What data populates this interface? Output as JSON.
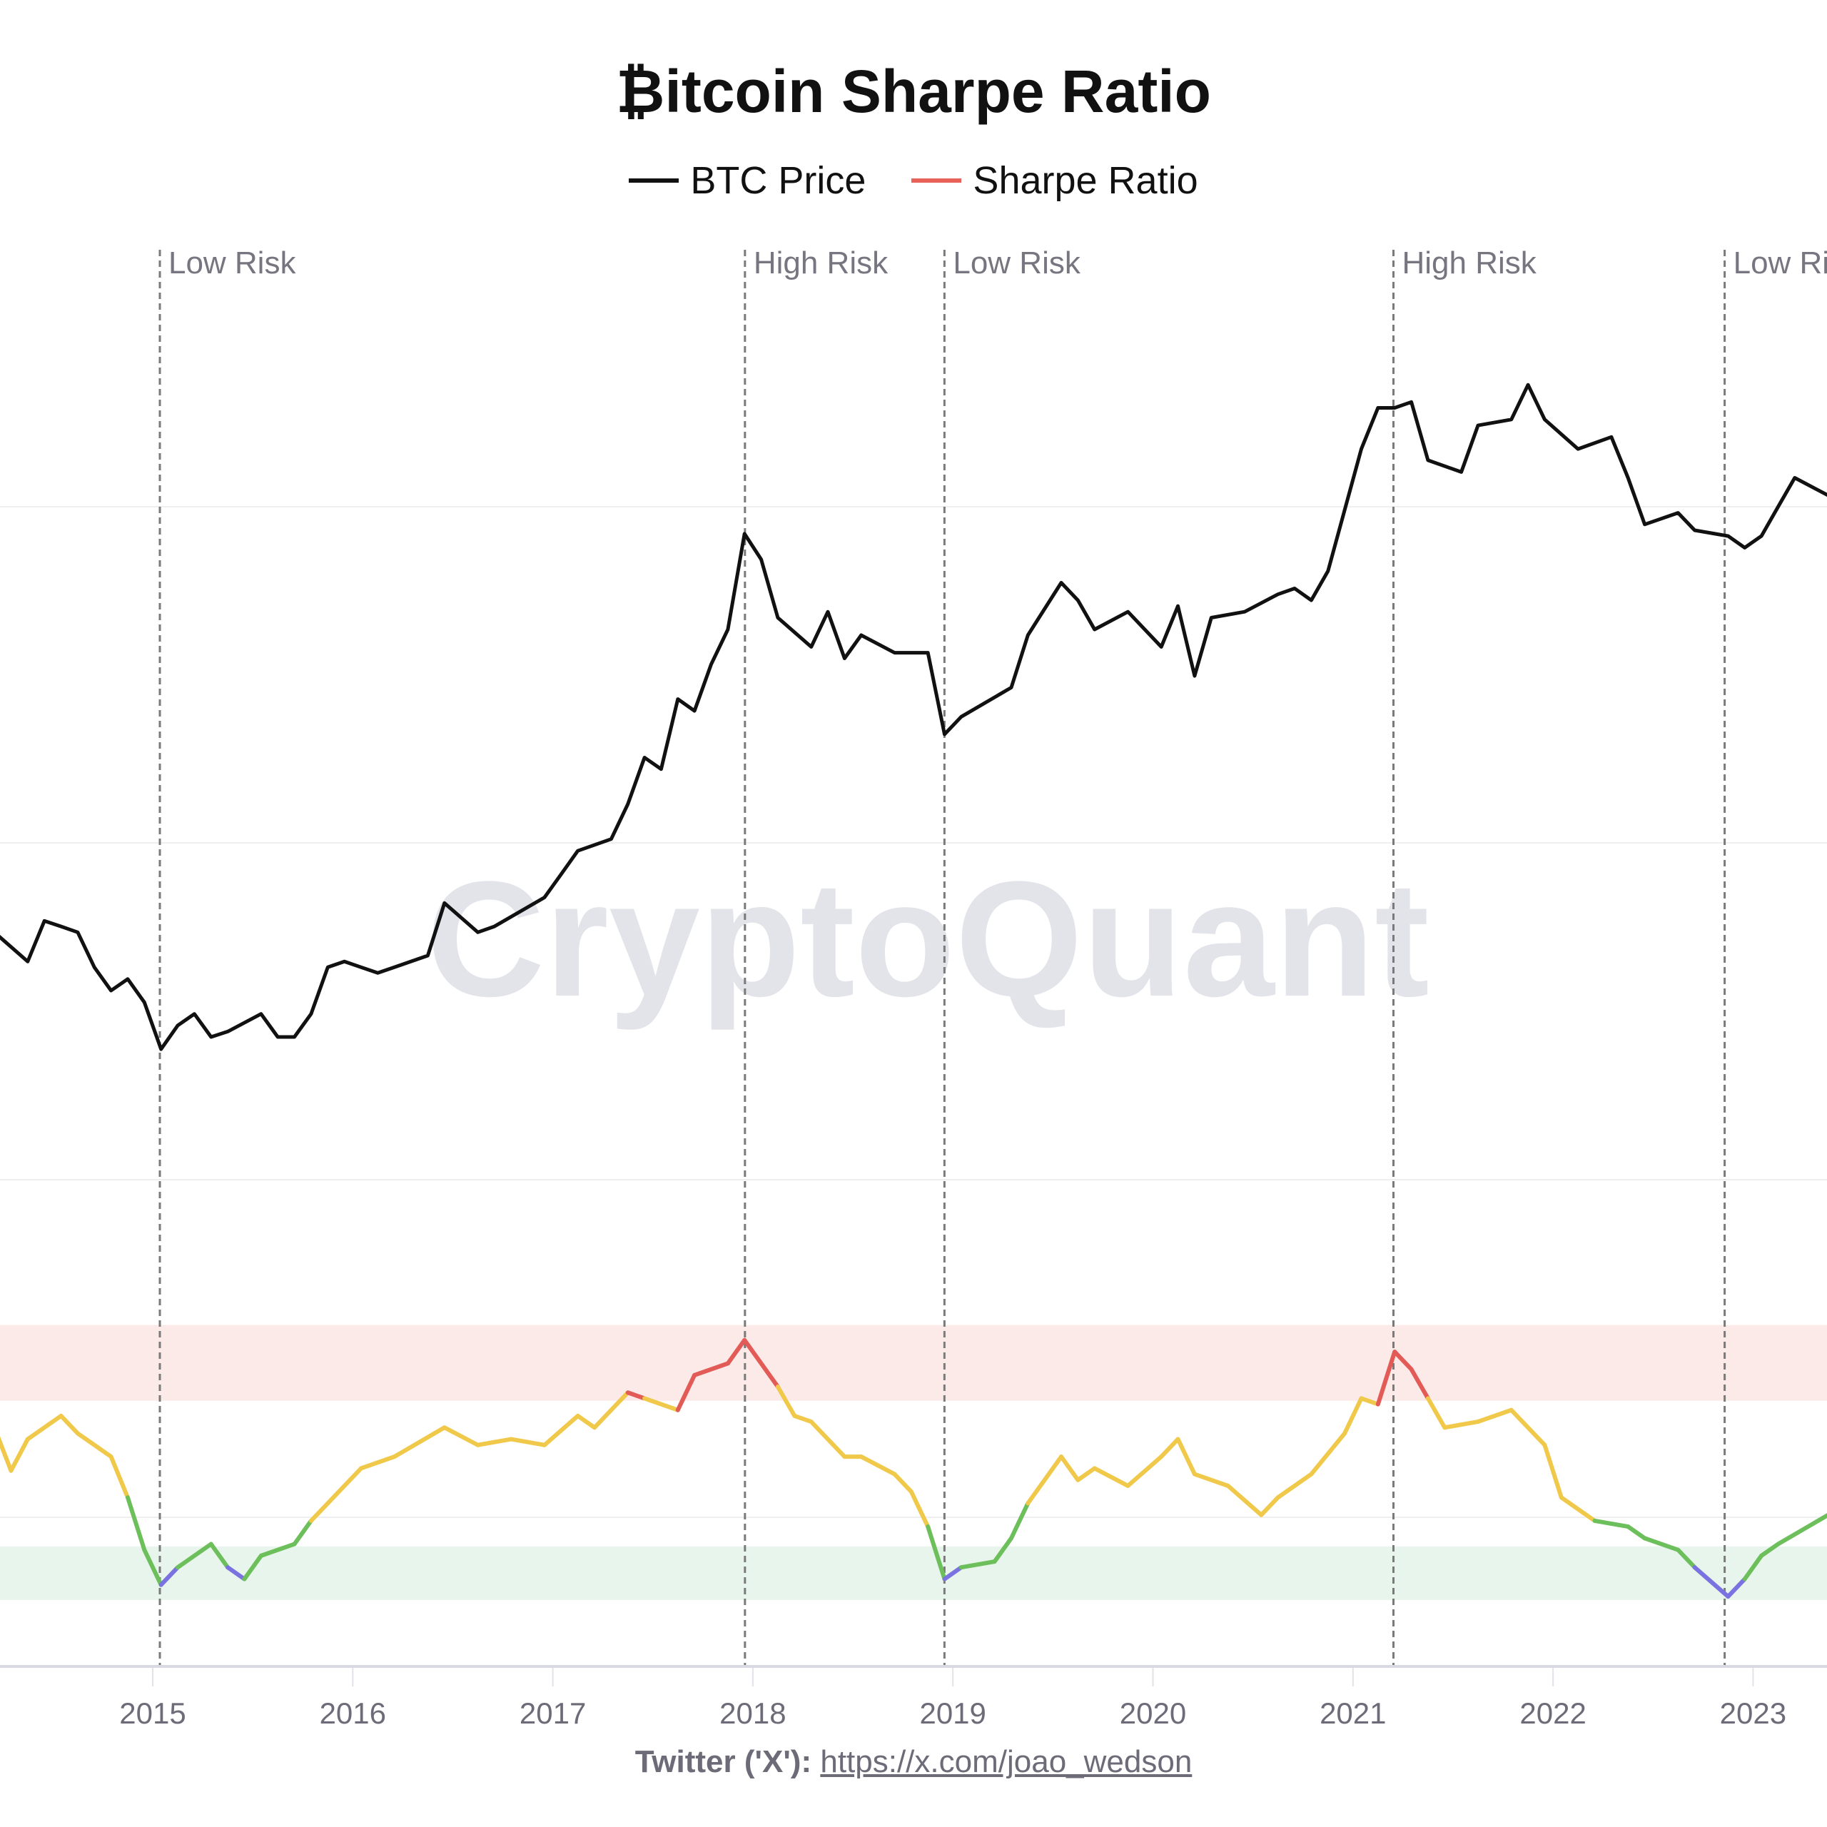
{
  "title": "₿itcoin Sharpe Ratio",
  "legend": [
    {
      "label": "BTC Price",
      "color": "#111111"
    },
    {
      "label": "Sharpe Ratio",
      "color": "#e8625a"
    }
  ],
  "watermark": "CryptoQuant",
  "footer": {
    "prefix": "Twitter ('X'):",
    "link": "https://x.com/joao_wedson"
  },
  "chart_data": {
    "type": "line",
    "title": "₿itcoin Sharpe Ratio",
    "xlabel": "",
    "x_ticks": [
      "2015",
      "2016",
      "2017",
      "2018",
      "2019",
      "2020",
      "2021",
      "2022",
      "2023"
    ],
    "xlim": [
      "2014-03",
      "2023-05"
    ],
    "grid": true,
    "legend_position": "top-center",
    "series": [
      {
        "name": "BTC Price",
        "scale": "log",
        "color": "#111111",
        "points": [
          [
            "2014-03",
            617
          ],
          [
            "2014-05",
            480
          ],
          [
            "2014-06",
            680
          ],
          [
            "2014-07",
            649
          ],
          [
            "2014-08",
            617
          ],
          [
            "2014-09",
            457
          ],
          [
            "2014-10",
            374
          ],
          [
            "2014-11",
            413
          ],
          [
            "2014-12",
            338
          ],
          [
            "2015-01",
            226
          ],
          [
            "2015-02",
            277
          ],
          [
            "2015-03",
            306
          ],
          [
            "2015-04",
            251
          ],
          [
            "2015-05",
            263
          ],
          [
            "2015-07",
            306
          ],
          [
            "2015-08",
            251
          ],
          [
            "2015-09",
            251
          ],
          [
            "2015-10",
            306
          ],
          [
            "2015-11",
            457
          ],
          [
            "2015-12",
            480
          ],
          [
            "2016-02",
            435
          ],
          [
            "2016-03",
            457
          ],
          [
            "2016-05",
            505
          ],
          [
            "2016-06",
            793
          ],
          [
            "2016-08",
            617
          ],
          [
            "2016-09",
            649
          ],
          [
            "2016-12",
            832
          ],
          [
            "2017-01",
            1016
          ],
          [
            "2017-02",
            1242
          ],
          [
            "2017-04",
            1374
          ],
          [
            "2017-05",
            1854
          ],
          [
            "2017-06",
            2767
          ],
          [
            "2017-07",
            2506
          ],
          [
            "2017-08",
            4571
          ],
          [
            "2017-09",
            4131
          ],
          [
            "2017-10",
            6166
          ],
          [
            "2017-11",
            8318
          ],
          [
            "2017-12",
            18920
          ],
          [
            "2018-01",
            15180
          ],
          [
            "2018-02",
            9200
          ],
          [
            "2018-04",
            7160
          ],
          [
            "2018-05",
            9680
          ],
          [
            "2018-06",
            6490
          ],
          [
            "2018-07",
            7920
          ],
          [
            "2018-09",
            6810
          ],
          [
            "2018-11",
            6810
          ],
          [
            "2018-12",
            3380
          ],
          [
            "2019-01",
            3930
          ],
          [
            "2019-04",
            5050
          ],
          [
            "2019-05",
            7920
          ],
          [
            "2019-07",
            12430
          ],
          [
            "2019-08",
            10690
          ],
          [
            "2019-09",
            8318
          ],
          [
            "2019-11",
            9680
          ],
          [
            "2020-01",
            7160
          ],
          [
            "2020-02",
            10170
          ],
          [
            "2020-03",
            5580
          ],
          [
            "2020-04",
            9200
          ],
          [
            "2020-06",
            9680
          ],
          [
            "2020-08",
            11250
          ],
          [
            "2020-09",
            11830
          ],
          [
            "2020-10",
            10690
          ],
          [
            "2020-11",
            13740
          ],
          [
            "2021-01",
            39210
          ],
          [
            "2021-02",
            55800
          ],
          [
            "2021-03",
            55800
          ],
          [
            "2021-04",
            58660
          ],
          [
            "2021-05",
            35570
          ],
          [
            "2021-07",
            32160
          ],
          [
            "2021-08",
            48000
          ],
          [
            "2021-10",
            50500
          ],
          [
            "2021-11",
            68000
          ],
          [
            "2021-12",
            50500
          ],
          [
            "2022-02",
            39210
          ],
          [
            "2022-04",
            43450
          ],
          [
            "2022-05",
            30600
          ],
          [
            "2022-06",
            20510
          ],
          [
            "2022-08",
            22640
          ],
          [
            "2022-09",
            19500
          ],
          [
            "2022-11",
            18550
          ],
          [
            "2022-12",
            16790
          ],
          [
            "2023-01",
            18550
          ],
          [
            "2023-02",
            23830
          ],
          [
            "2023-03",
            30600
          ],
          [
            "2023-05",
            26310
          ]
        ]
      },
      {
        "name": "Sharpe Ratio",
        "color": "#e8625a",
        "zone_colors": {
          "high": "#e35b57",
          "neutral": "#f0c94a",
          "low": "#6cbf5a",
          "extreme_low": "#7a72e0"
        },
        "points": [
          [
            "2014-03",
            0.77
          ],
          [
            "2014-04",
            0.4
          ],
          [
            "2014-05",
            0.67
          ],
          [
            "2014-07",
            0.87
          ],
          [
            "2014-08",
            0.72
          ],
          [
            "2014-10",
            0.52
          ],
          [
            "2014-11",
            0.17
          ],
          [
            "2014-12",
            -0.28
          ],
          [
            "2015-01",
            -0.58
          ],
          [
            "2015-02",
            -0.43
          ],
          [
            "2015-04",
            -0.23
          ],
          [
            "2015-05",
            -0.43
          ],
          [
            "2015-06",
            -0.53
          ],
          [
            "2015-07",
            -0.33
          ],
          [
            "2015-09",
            -0.23
          ],
          [
            "2015-10",
            -0.03
          ],
          [
            "2015-11",
            0.12
          ],
          [
            "2016-01",
            0.42
          ],
          [
            "2016-03",
            0.52
          ],
          [
            "2016-06",
            0.77
          ],
          [
            "2016-08",
            0.62
          ],
          [
            "2016-10",
            0.67
          ],
          [
            "2016-12",
            0.62
          ],
          [
            "2017-02",
            0.87
          ],
          [
            "2017-03",
            0.77
          ],
          [
            "2017-05",
            1.07
          ],
          [
            "2017-06",
            1.02
          ],
          [
            "2017-08",
            0.92
          ],
          [
            "2017-09",
            1.22
          ],
          [
            "2017-11",
            1.32
          ],
          [
            "2017-12",
            1.52
          ],
          [
            "2018-02",
            1.12
          ],
          [
            "2018-03",
            0.87
          ],
          [
            "2018-04",
            0.82
          ],
          [
            "2018-06",
            0.52
          ],
          [
            "2018-07",
            0.52
          ],
          [
            "2018-09",
            0.37
          ],
          [
            "2018-10",
            0.22
          ],
          [
            "2018-11",
            -0.08
          ],
          [
            "2018-12",
            -0.53
          ],
          [
            "2019-01",
            -0.43
          ],
          [
            "2019-03",
            -0.38
          ],
          [
            "2019-04",
            -0.18
          ],
          [
            "2019-05",
            0.12
          ],
          [
            "2019-07",
            0.52
          ],
          [
            "2019-08",
            0.32
          ],
          [
            "2019-09",
            0.42
          ],
          [
            "2019-11",
            0.27
          ],
          [
            "2020-01",
            0.52
          ],
          [
            "2020-02",
            0.67
          ],
          [
            "2020-03",
            0.37
          ],
          [
            "2020-05",
            0.27
          ],
          [
            "2020-07",
            0.02
          ],
          [
            "2020-08",
            0.17
          ],
          [
            "2020-10",
            0.37
          ],
          [
            "2020-12",
            0.72
          ],
          [
            "2021-01",
            1.02
          ],
          [
            "2021-02",
            0.97
          ],
          [
            "2021-03",
            1.42
          ],
          [
            "2021-04",
            1.27
          ],
          [
            "2021-05",
            1.02
          ],
          [
            "2021-06",
            0.77
          ],
          [
            "2021-08",
            0.82
          ],
          [
            "2021-10",
            0.92
          ],
          [
            "2021-12",
            0.62
          ],
          [
            "2022-01",
            0.17
          ],
          [
            "2022-03",
            -0.03
          ],
          [
            "2022-05",
            -0.08
          ],
          [
            "2022-06",
            -0.18
          ],
          [
            "2022-08",
            -0.28
          ],
          [
            "2022-09",
            -0.43
          ],
          [
            "2022-11",
            -0.68
          ],
          [
            "2022-12",
            -0.53
          ],
          [
            "2023-01",
            -0.33
          ],
          [
            "2023-02",
            -0.23
          ],
          [
            "2023-05",
            0.02
          ]
        ]
      }
    ],
    "bands": [
      {
        "zone": "high-risk",
        "from": 1.0,
        "to": 1.65,
        "color": "#fbeae8"
      },
      {
        "zone": "low-risk",
        "from": -0.71,
        "to": -0.25,
        "color": "#e8f5ec"
      }
    ],
    "annotations": [
      {
        "date": "2015-01-14",
        "label": "Low Risk"
      },
      {
        "date": "2017-12-17",
        "label": "High Risk"
      },
      {
        "date": "2018-12-16",
        "label": "Low Risk"
      },
      {
        "date": "2021-03-14",
        "label": "High Risk"
      },
      {
        "date": "2022-11-10",
        "label": "Low Risk"
      }
    ]
  }
}
